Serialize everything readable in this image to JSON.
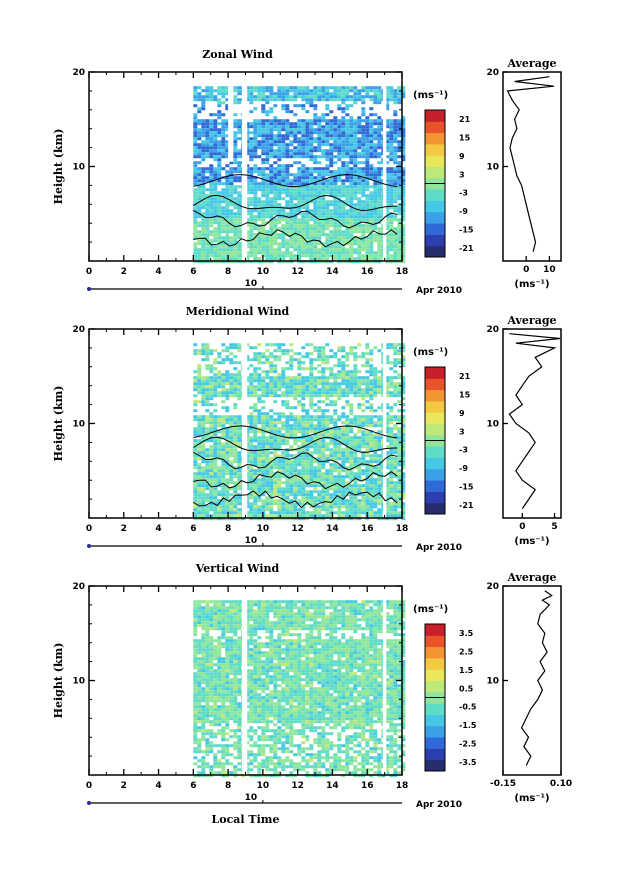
{
  "chart_data": [
    {
      "type": "heatmap",
      "title": "Zonal Wind",
      "ylabel": "Height (km)",
      "unit_label": "(ms⁻¹)",
      "date_label": "Apr 2010",
      "day_label": "10",
      "xlim": [
        0,
        18
      ],
      "ylim": [
        0,
        20
      ],
      "xticks": [
        "0",
        "2",
        "4",
        "6",
        "8",
        "10",
        "12",
        "14",
        "16",
        "18"
      ],
      "yticks": [
        "10",
        "20"
      ],
      "colorbar_ticks": [
        "21",
        "15",
        "9",
        "3",
        "-3",
        "-9",
        "-15",
        "-21"
      ],
      "data_extent": {
        "x": [
          6,
          18
        ],
        "y": [
          0,
          18.5
        ]
      },
      "average": {
        "title": "Average",
        "xticks": [
          "0",
          "10"
        ],
        "xlim": [
          -10,
          15
        ],
        "xlabel": "(ms⁻¹)",
        "profile": [
          [
            3,
            1
          ],
          [
            4,
            2
          ],
          [
            3,
            3
          ],
          [
            2,
            4
          ],
          [
            1,
            5
          ],
          [
            0,
            6
          ],
          [
            -1,
            7
          ],
          [
            -2,
            8
          ],
          [
            -4,
            9
          ],
          [
            -5,
            10
          ],
          [
            -6,
            11
          ],
          [
            -7,
            12
          ],
          [
            -6,
            13
          ],
          [
            -4,
            14
          ],
          [
            -5,
            15
          ],
          [
            -3,
            16
          ],
          [
            -6,
            17
          ],
          [
            -8,
            18
          ],
          [
            12,
            18.5
          ],
          [
            -5,
            19
          ],
          [
            10,
            19.5
          ]
        ]
      }
    },
    {
      "type": "heatmap",
      "title": "Meridional Wind",
      "ylabel": "Height (km)",
      "unit_label": "(ms⁻¹)",
      "date_label": "Apr 2010",
      "day_label": "10",
      "xlim": [
        0,
        18
      ],
      "ylim": [
        0,
        20
      ],
      "xticks": [
        "0",
        "2",
        "4",
        "6",
        "8",
        "10",
        "12",
        "14",
        "16",
        "18"
      ],
      "yticks": [
        "10",
        "20"
      ],
      "colorbar_ticks": [
        "21",
        "15",
        "9",
        "3",
        "-3",
        "-9",
        "-15",
        "-21"
      ],
      "data_extent": {
        "x": [
          6,
          18
        ],
        "y": [
          0,
          18.5
        ]
      },
      "average": {
        "title": "Average",
        "xticks": [
          "0",
          "5"
        ],
        "xlim": [
          -3,
          6
        ],
        "xlabel": "(ms⁻¹)",
        "profile": [
          [
            0,
            1
          ],
          [
            1,
            2
          ],
          [
            2,
            3
          ],
          [
            0,
            4
          ],
          [
            -1,
            5
          ],
          [
            0,
            6
          ],
          [
            1,
            7
          ],
          [
            2,
            8
          ],
          [
            1,
            9
          ],
          [
            -1,
            10
          ],
          [
            -2,
            11
          ],
          [
            0,
            12
          ],
          [
            -1,
            13
          ],
          [
            0,
            14
          ],
          [
            1,
            15
          ],
          [
            3,
            16
          ],
          [
            2,
            17
          ],
          [
            5,
            18
          ],
          [
            -1,
            18.5
          ],
          [
            6,
            19
          ],
          [
            -2,
            19.5
          ]
        ]
      }
    },
    {
      "type": "heatmap",
      "title": "Vertical Wind",
      "ylabel": "Height (km)",
      "xlabel": "Local Time",
      "unit_label": "(ms⁻¹)",
      "date_label": "Apr 2010",
      "day_label": "10",
      "xlim": [
        0,
        18
      ],
      "ylim": [
        0,
        20
      ],
      "xticks": [
        "0",
        "2",
        "4",
        "6",
        "8",
        "10",
        "12",
        "14",
        "16",
        "18"
      ],
      "yticks": [
        "10",
        "20"
      ],
      "colorbar_ticks": [
        "3.5",
        "2.5",
        "1.5",
        "0.5",
        "-0.5",
        "-1.5",
        "-2.5",
        "-3.5"
      ],
      "data_extent": {
        "x": [
          6,
          18
        ],
        "y": [
          0,
          18.5
        ]
      },
      "average": {
        "title": "Average",
        "xticks": [
          "-0.15",
          "0.10"
        ],
        "xlim": [
          -0.15,
          0.1
        ],
        "xlabel": "(ms⁻¹)",
        "profile": [
          [
            -0.05,
            1
          ],
          [
            -0.03,
            2
          ],
          [
            -0.06,
            3
          ],
          [
            -0.04,
            4
          ],
          [
            -0.07,
            5
          ],
          [
            -0.05,
            6
          ],
          [
            -0.03,
            7
          ],
          [
            0.0,
            8
          ],
          [
            0.02,
            9
          ],
          [
            0.0,
            10
          ],
          [
            0.03,
            11
          ],
          [
            0.01,
            12
          ],
          [
            0.04,
            13
          ],
          [
            0.02,
            14
          ],
          [
            0.03,
            15
          ],
          [
            0.0,
            16
          ],
          [
            0.01,
            17
          ],
          [
            0.05,
            18
          ],
          [
            0.02,
            18.5
          ],
          [
            0.06,
            19
          ],
          [
            0.03,
            19.5
          ]
        ]
      }
    }
  ],
  "colorbar_colors": [
    "#262d6e",
    "#2c3fb0",
    "#2f6ad8",
    "#3aa0e8",
    "#45c8e6",
    "#5fdcc8",
    "#8ee69a",
    "#bde87a",
    "#e8e85a",
    "#f5c842",
    "#f59432",
    "#e8532a",
    "#c8202a"
  ]
}
